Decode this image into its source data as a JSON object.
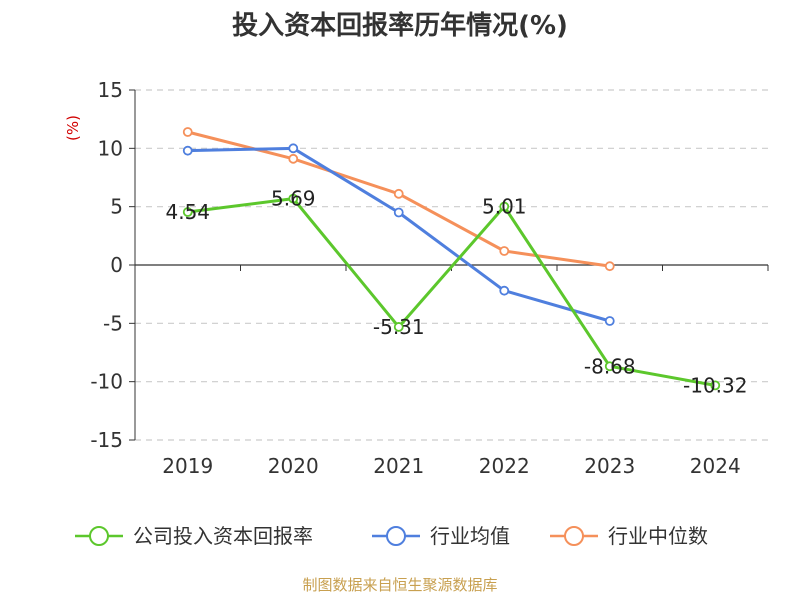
{
  "chart_data": {
    "type": "line",
    "title": "投入资本回报率历年情况(%)",
    "ylabel": "(%)",
    "categories": [
      "2019",
      "2020",
      "2021",
      "2022",
      "2023",
      "2024"
    ],
    "ylim": [
      -15,
      15
    ],
    "yticks": [
      15,
      10,
      5,
      0,
      -5,
      -10,
      -15
    ],
    "grid": true,
    "legend_position": "bottom",
    "series": [
      {
        "name": "公司投入资本回报率",
        "color": "#5cc72c",
        "values": [
          4.54,
          5.69,
          -5.31,
          5.01,
          -8.68,
          -10.32
        ],
        "labels": [
          "4.54",
          "5.69",
          "-5.31",
          "5.01",
          "-8.68",
          "-10.32"
        ]
      },
      {
        "name": "行业均值",
        "color": "#4f7fde",
        "values": [
          9.8,
          10.0,
          4.5,
          -2.2,
          -4.8,
          null
        ]
      },
      {
        "name": "行业中位数",
        "color": "#f5905a",
        "values": [
          11.4,
          9.1,
          6.1,
          1.2,
          -0.1,
          null
        ]
      }
    ]
  },
  "colors": {
    "unit_label": "#d10000",
    "source_text": "#c8a050",
    "grid": "#cccccc",
    "axis": "#333333"
  },
  "source": "制图数据来自恒生聚源数据库"
}
